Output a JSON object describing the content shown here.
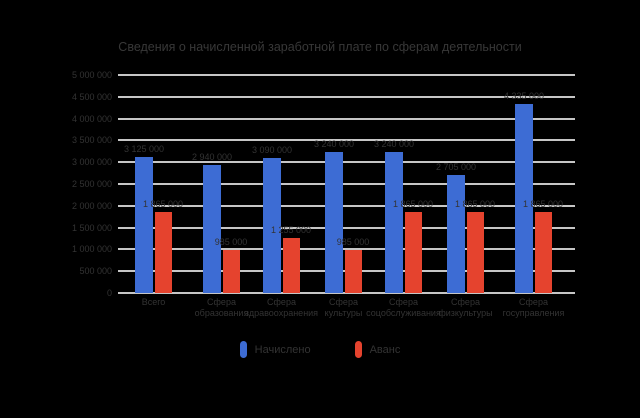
{
  "chart_data": {
    "type": "bar",
    "title": "Сведения о начисленной заработной плате по сферам деятельности",
    "grid": true,
    "legend_position": "bottom",
    "background_color": "#000000",
    "gridline_color": "#c6c6c6",
    "text_color": "#333333",
    "ylim": [
      0,
      5000000
    ],
    "yticks": [
      "5 000 000",
      "4 500 000",
      "4 000 000",
      "3 500 000",
      "3 000 000",
      "2 500 000",
      "2 000 000",
      "1 500 000",
      "1 000 000",
      "500 000",
      "0"
    ],
    "categories": [
      [
        "Всего",
        ""
      ],
      [
        "Сфера",
        "образования"
      ],
      [
        "Сфера",
        "здравоохранения"
      ],
      [
        "Сфера",
        "культуры"
      ],
      [
        "Сфера",
        "соцобслуживания"
      ],
      [
        "Сфера",
        "физкультуры"
      ],
      [
        "Сфера",
        "госуправления"
      ]
    ],
    "series": [
      {
        "name": "Начислено",
        "color": "#3d6cd4",
        "values": [
          3125000,
          2940000,
          3090000,
          3240000,
          3240000,
          2705000,
          4335000
        ],
        "labels": [
          "3 125 000",
          "2 940 000",
          "3 090 000",
          "3 240 000",
          "3 240 000",
          "2 705 000",
          "4 335 000"
        ]
      },
      {
        "name": "Аванс",
        "color": "#e5432e",
        "values": [
          1865000,
          985000,
          1255000,
          985000,
          1865000,
          1865000,
          1865000
        ],
        "labels": [
          "1 865 000",
          "985 000",
          "1 255 000",
          "985 000",
          "1 865 000",
          "1 865 000",
          "1 865 000"
        ]
      }
    ]
  }
}
